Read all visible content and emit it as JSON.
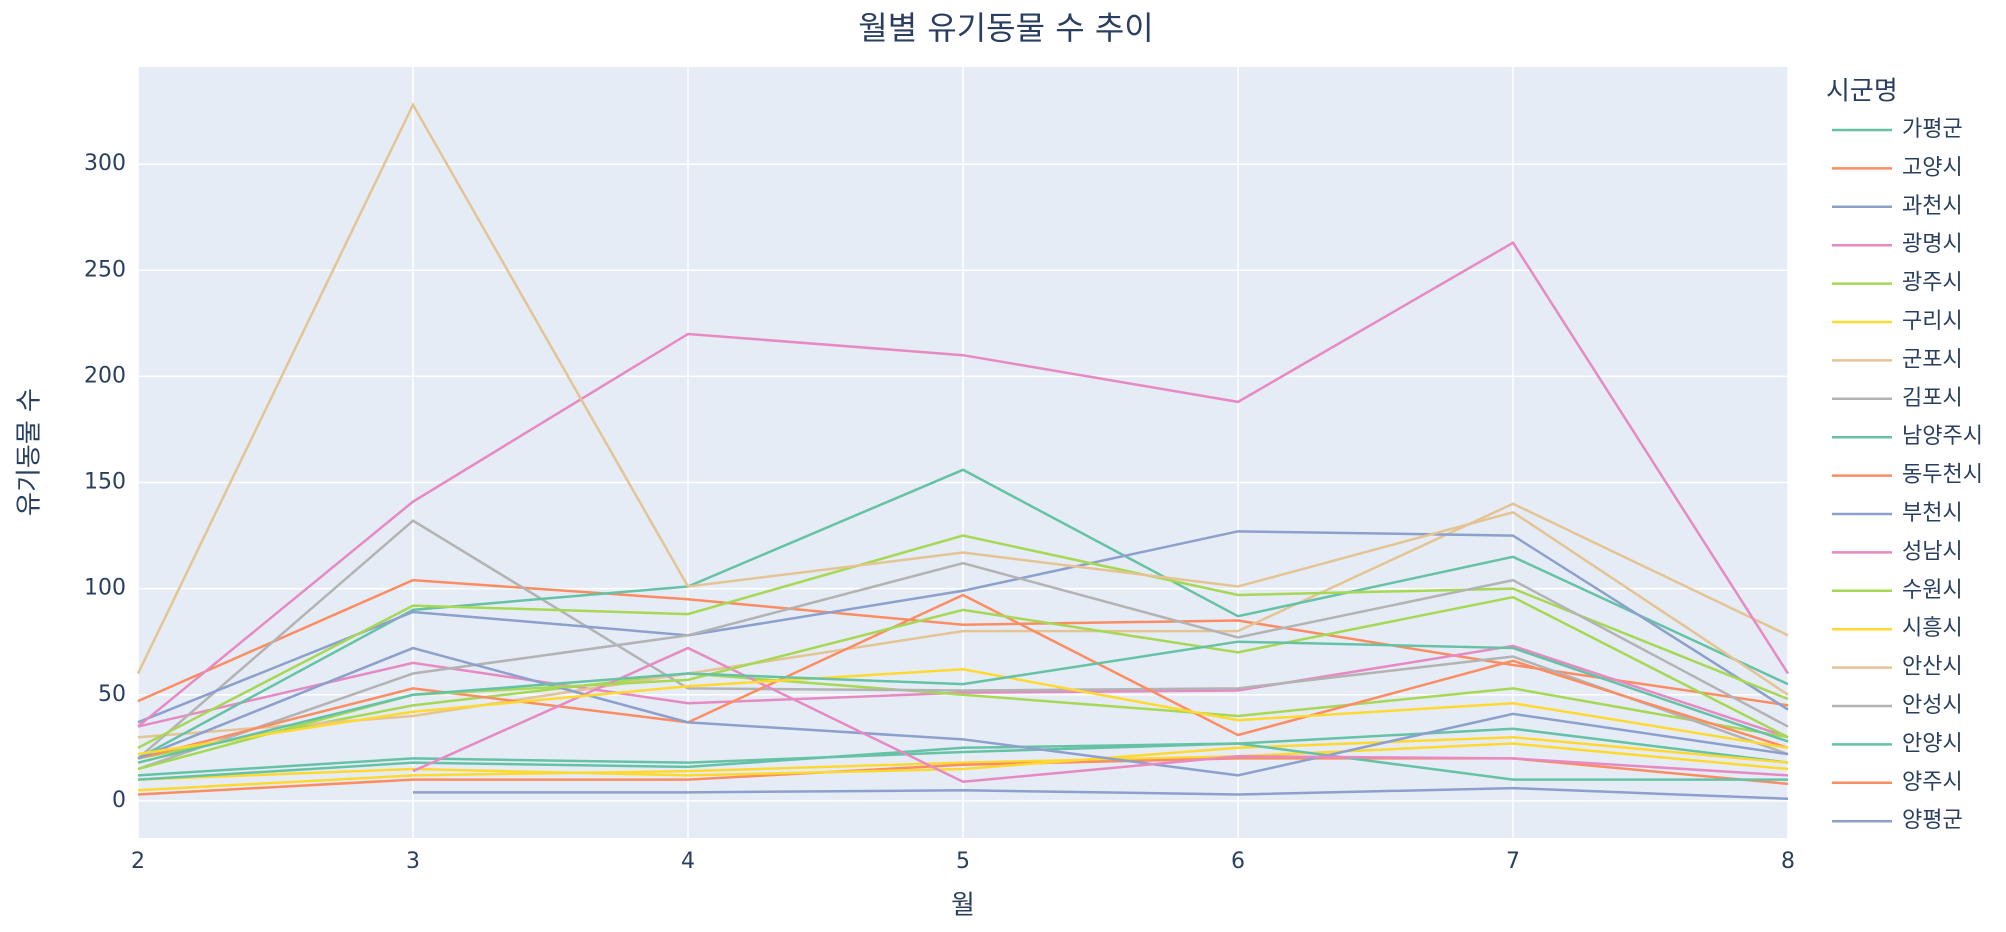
{
  "chart_data": {
    "type": "line",
    "title": "월별 유기동물 수 추이",
    "x_label": "월",
    "y_label": "유기동물 수",
    "legend_title": "시군명",
    "x": [
      2,
      3,
      4,
      5,
      6,
      7,
      8
    ],
    "xlim": [
      2,
      8
    ],
    "xticks": [
      2,
      3,
      4,
      5,
      6,
      7,
      8
    ],
    "ylim": [
      -17.5,
      345.8
    ],
    "yticks": [
      0,
      50,
      100,
      150,
      200,
      250,
      300
    ],
    "grid": true,
    "legend": "right",
    "series": [
      {
        "name": "가평군",
        "color": "#66c2a5",
        "values": [
          12,
          20,
          18,
          23,
          27,
          34,
          18
        ]
      },
      {
        "name": "고양시",
        "color": "#fc8d62",
        "values": [
          47,
          104,
          95,
          83,
          85,
          64,
          45
        ]
      },
      {
        "name": "과천시",
        "color": "#8da0cb",
        "values": [
          null,
          4,
          4,
          5,
          3,
          6,
          1
        ]
      },
      {
        "name": "광명시",
        "color": "#e78ac3",
        "values": [
          35,
          65,
          46,
          51,
          52,
          73,
          30
        ]
      },
      {
        "name": "광주시",
        "color": "#a6d854",
        "values": [
          20,
          45,
          60,
          50,
          40,
          53,
          30
        ]
      },
      {
        "name": "구리시",
        "color": "#ffd92f",
        "values": [
          5,
          12,
          14,
          18,
          21,
          27,
          15
        ]
      },
      {
        "name": "군포시",
        "color": "#e5c494",
        "values": [
          30,
          40,
          60,
          80,
          80,
          140,
          78
        ]
      },
      {
        "name": "김포시",
        "color": "#b3b3b3",
        "values": [
          20,
          132,
          53,
          52,
          53,
          68,
          22
        ]
      },
      {
        "name": "남양주시",
        "color": "#66c2a5",
        "values": [
          20,
          90,
          101,
          156,
          87,
          115,
          55
        ]
      },
      {
        "name": "동두천시",
        "color": "#fc8d62",
        "values": [
          3,
          10,
          10,
          17,
          20,
          20,
          8
        ]
      },
      {
        "name": "부천시",
        "color": "#8da0cb",
        "values": [
          37,
          89,
          78,
          99,
          127,
          125,
          43
        ]
      },
      {
        "name": "성남시",
        "color": "#e78ac3",
        "values": [
          35,
          141,
          220,
          210,
          188,
          263,
          60
        ]
      },
      {
        "name": "수원시",
        "color": "#a6d854",
        "values": [
          25,
          92,
          88,
          125,
          97,
          100,
          48
        ]
      },
      {
        "name": "시흥시",
        "color": "#ffd92f",
        "values": [
          10,
          15,
          12,
          15,
          25,
          30,
          18
        ]
      },
      {
        "name": "안산시",
        "color": "#e5c494",
        "values": [
          60,
          328,
          101,
          117,
          101,
          136,
          50
        ]
      },
      {
        "name": "안성시",
        "color": "#b3b3b3",
        "values": [
          15,
          60,
          78,
          112,
          77,
          104,
          35
        ]
      },
      {
        "name": "안양시",
        "color": "#66c2a5",
        "values": [
          10,
          18,
          16,
          25,
          27,
          10,
          10
        ]
      },
      {
        "name": "양주시",
        "color": "#fc8d62",
        "values": [
          20,
          53,
          37,
          97,
          31,
          66,
          25
        ]
      },
      {
        "name": "양평군",
        "color": "#8da0cb",
        "values": [
          20,
          72,
          37,
          29,
          12,
          41,
          22
        ]
      },
      {
        "color": "#e78ac3",
        "values": [
          null,
          14,
          72,
          9,
          21,
          20,
          12
        ]
      },
      {
        "color": "#a6d854",
        "values": [
          15,
          50,
          57,
          90,
          70,
          96,
          30
        ]
      },
      {
        "color": "#ffd92f",
        "values": [
          22,
          42,
          54,
          62,
          38,
          46,
          25
        ]
      },
      {
        "color": "#66c2a5",
        "values": [
          18,
          50,
          60,
          55,
          75,
          72,
          28
        ]
      }
    ]
  }
}
